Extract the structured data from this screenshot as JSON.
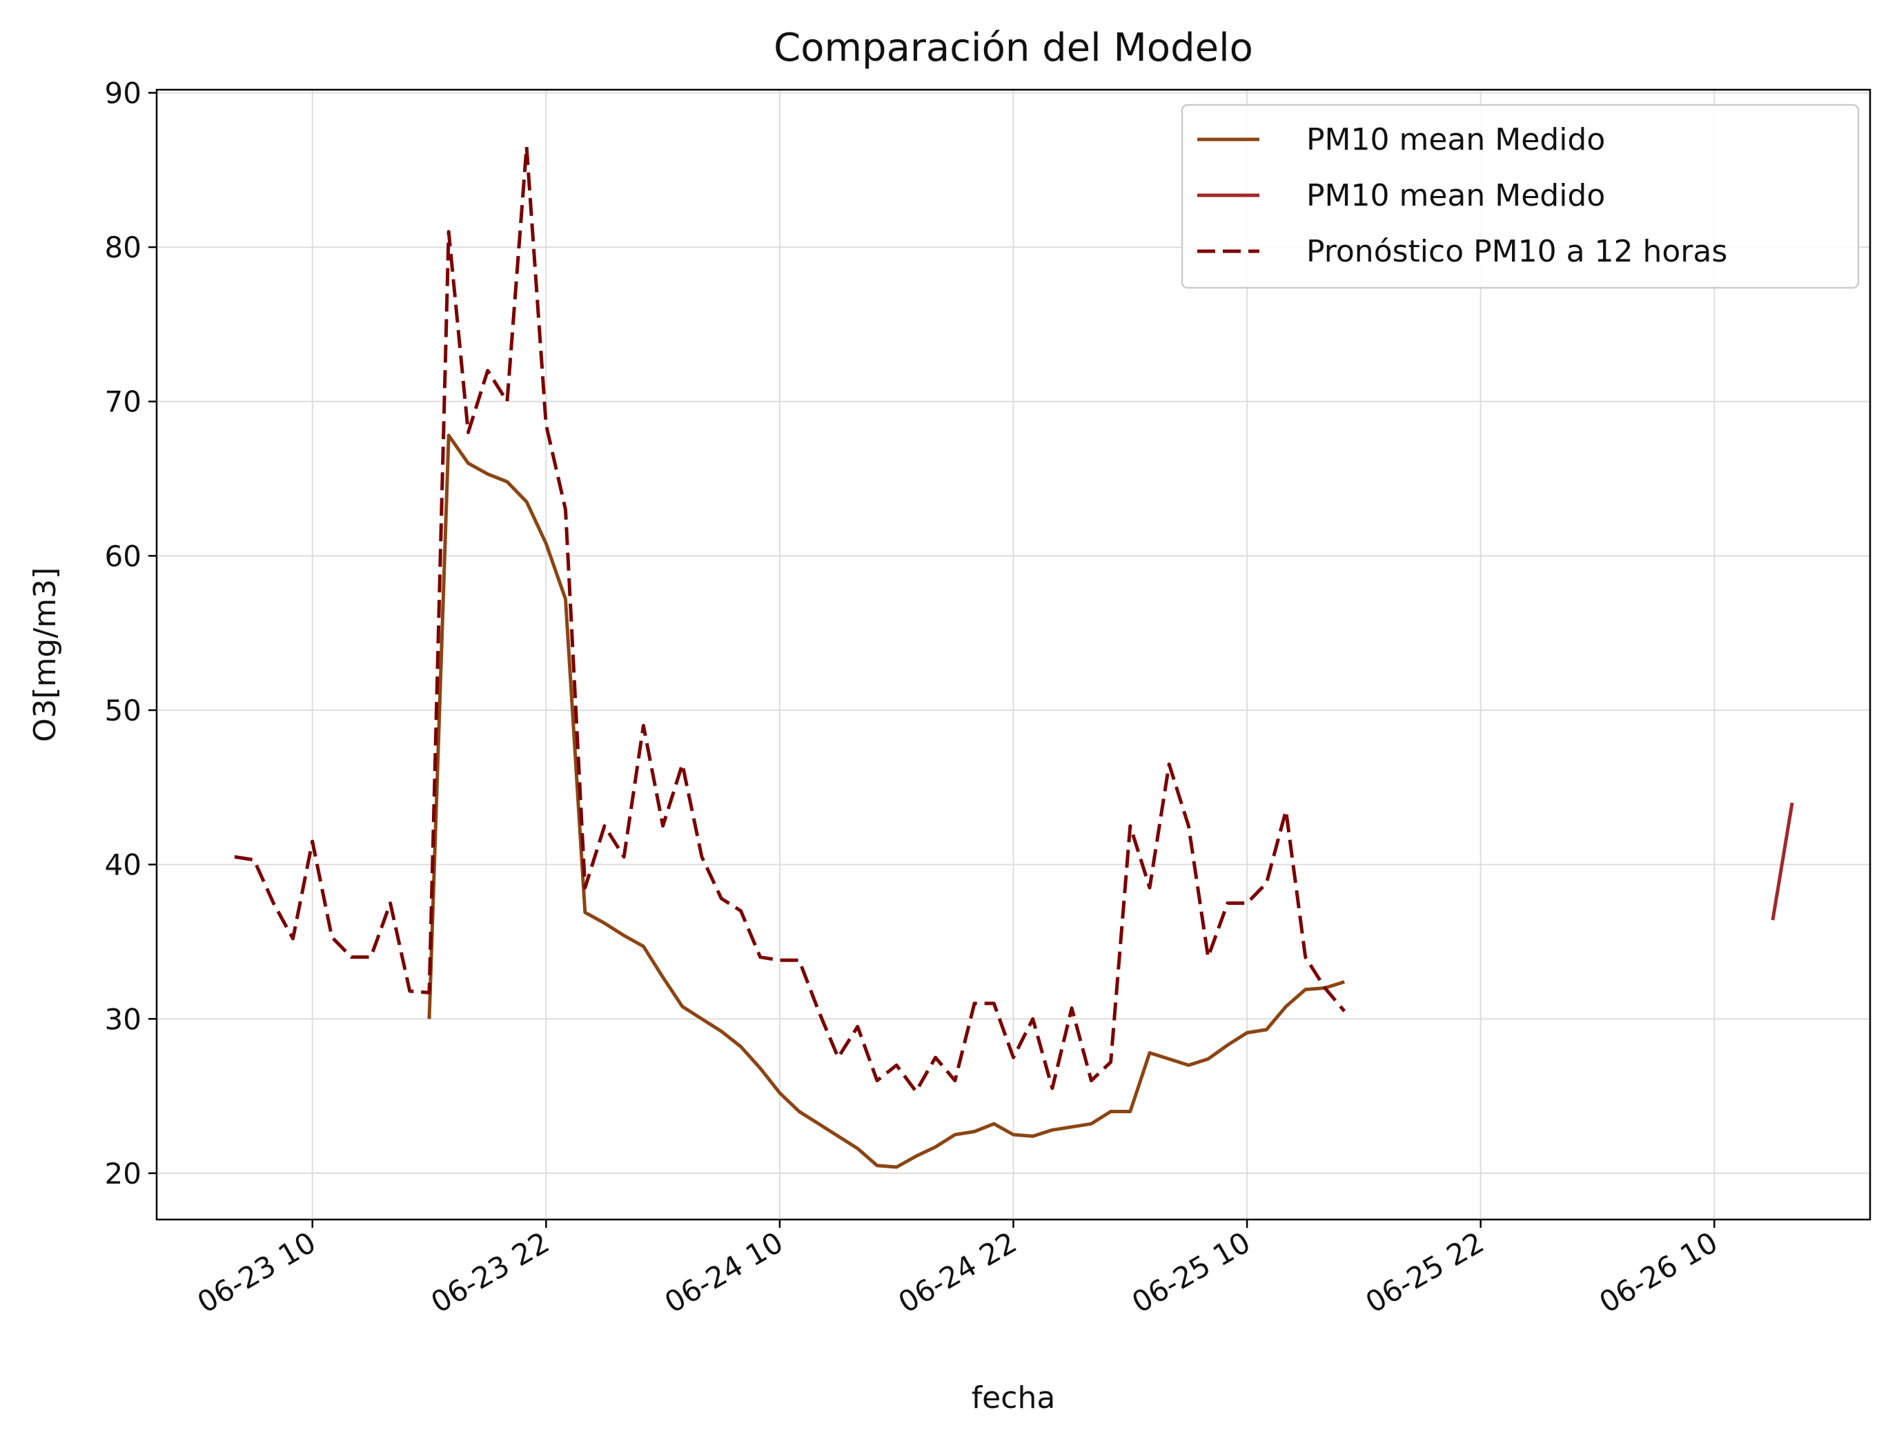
{
  "chart_data": {
    "type": "line",
    "title": "Comparación del Modelo",
    "xlabel": "fecha",
    "ylabel": "O3[mg/m3]",
    "x_unit": "hour",
    "x_ticks": [
      "06-23 10",
      "06-23 22",
      "06-24 10",
      "06-24 22",
      "06-25 10",
      "06-25 22",
      "06-26 10"
    ],
    "x_tick_dates": [
      "2023-06-23 10:00",
      "2023-06-23 22:00",
      "2023-06-24 10:00",
      "2023-06-24 22:00",
      "2023-06-25 10:00",
      "2023-06-25 22:00",
      "2023-06-26 10:00"
    ],
    "xlim": [
      "2023-06-23 02:00",
      "2023-06-26 18:00"
    ],
    "y_ticks": [
      20,
      30,
      40,
      50,
      60,
      70,
      80,
      90
    ],
    "ylim": [
      17,
      90.2
    ],
    "grid": true,
    "legend_position": "top-right",
    "series": [
      {
        "name": "PM10 mean Medido",
        "color": "#8B4513",
        "style": "solid",
        "x": [
          "2023-06-23 16:00",
          "2023-06-23 17:00",
          "2023-06-23 18:00",
          "2023-06-23 19:00",
          "2023-06-23 20:00",
          "2023-06-23 21:00",
          "2023-06-23 22:00",
          "2023-06-23 23:00",
          "2023-06-24 00:00",
          "2023-06-24 01:00",
          "2023-06-24 02:00",
          "2023-06-24 03:00",
          "2023-06-24 04:00",
          "2023-06-24 05:00",
          "2023-06-24 06:00",
          "2023-06-24 07:00",
          "2023-06-24 08:00",
          "2023-06-24 09:00",
          "2023-06-24 10:00",
          "2023-06-24 11:00",
          "2023-06-24 12:00",
          "2023-06-24 13:00",
          "2023-06-24 14:00",
          "2023-06-24 15:00",
          "2023-06-24 16:00",
          "2023-06-24 17:00",
          "2023-06-24 18:00",
          "2023-06-24 19:00",
          "2023-06-24 20:00",
          "2023-06-24 21:00",
          "2023-06-24 22:00",
          "2023-06-24 23:00",
          "2023-06-25 00:00",
          "2023-06-25 01:00",
          "2023-06-25 02:00",
          "2023-06-25 03:00",
          "2023-06-25 04:00",
          "2023-06-25 05:00",
          "2023-06-25 06:00",
          "2023-06-25 07:00",
          "2023-06-25 08:00",
          "2023-06-25 09:00",
          "2023-06-25 10:00",
          "2023-06-25 11:00",
          "2023-06-25 12:00",
          "2023-06-25 13:00",
          "2023-06-25 14:00",
          "2023-06-25 15:00"
        ],
        "values": [
          30.0,
          67.8,
          66.0,
          65.3,
          64.8,
          63.5,
          60.8,
          57.2,
          36.9,
          36.2,
          35.4,
          34.7,
          32.7,
          30.8,
          30.0,
          29.2,
          28.2,
          26.8,
          25.2,
          24.0,
          23.2,
          22.4,
          21.6,
          20.5,
          20.4,
          21.1,
          21.7,
          22.5,
          22.7,
          23.2,
          22.5,
          22.4,
          22.8,
          23.0,
          23.2,
          24.0,
          24.0,
          27.8,
          27.4,
          27.0,
          27.4,
          28.3,
          29.1,
          29.3,
          30.8,
          31.9,
          32.0,
          32.4
        ]
      },
      {
        "name": "PM10 mean Medido",
        "color": "#A0282A",
        "style": "solid",
        "x": [
          "2023-06-26 13:00",
          "2023-06-26 14:00"
        ],
        "values": [
          36.4,
          44.0
        ]
      },
      {
        "name": "Pronóstico PM10 a 12 horas",
        "color": "#7A0000",
        "style": "dashed",
        "x": [
          "2023-06-23 06:00",
          "2023-06-23 07:00",
          "2023-06-23 08:00",
          "2023-06-23 09:00",
          "2023-06-23 10:00",
          "2023-06-23 11:00",
          "2023-06-23 12:00",
          "2023-06-23 13:00",
          "2023-06-23 14:00",
          "2023-06-23 15:00",
          "2023-06-23 16:00",
          "2023-06-23 17:00",
          "2023-06-23 18:00",
          "2023-06-23 19:00",
          "2023-06-23 20:00",
          "2023-06-23 21:00",
          "2023-06-23 22:00",
          "2023-06-23 23:00",
          "2023-06-24 00:00",
          "2023-06-24 01:00",
          "2023-06-24 02:00",
          "2023-06-24 03:00",
          "2023-06-24 04:00",
          "2023-06-24 05:00",
          "2023-06-24 06:00",
          "2023-06-24 07:00",
          "2023-06-24 08:00",
          "2023-06-24 09:00",
          "2023-06-24 10:00",
          "2023-06-24 11:00",
          "2023-06-24 12:00",
          "2023-06-24 13:00",
          "2023-06-24 14:00",
          "2023-06-24 15:00",
          "2023-06-24 16:00",
          "2023-06-24 17:00",
          "2023-06-24 18:00",
          "2023-06-24 19:00",
          "2023-06-24 20:00",
          "2023-06-24 21:00",
          "2023-06-24 22:00",
          "2023-06-24 23:00",
          "2023-06-25 00:00",
          "2023-06-25 01:00",
          "2023-06-25 02:00",
          "2023-06-25 03:00",
          "2023-06-25 04:00",
          "2023-06-25 05:00",
          "2023-06-25 06:00",
          "2023-06-25 07:00",
          "2023-06-25 08:00",
          "2023-06-25 09:00",
          "2023-06-25 10:00",
          "2023-06-25 11:00",
          "2023-06-25 12:00",
          "2023-06-25 13:00",
          "2023-06-25 14:00",
          "2023-06-25 15:00"
        ],
        "values": [
          40.5,
          40.3,
          37.5,
          35.2,
          41.5,
          35.3,
          34.0,
          34.0,
          37.5,
          31.8,
          31.7,
          81.0,
          68.0,
          72.0,
          70.0,
          86.5,
          68.5,
          63.0,
          38.5,
          42.5,
          40.5,
          49.0,
          42.5,
          46.5,
          40.5,
          37.8,
          37.0,
          34.0,
          33.8,
          33.8,
          30.5,
          27.5,
          29.5,
          26.0,
          27.0,
          25.3,
          27.5,
          26.0,
          31.0,
          31.0,
          27.5,
          30.0,
          25.5,
          30.7,
          26.0,
          27.2,
          42.5,
          38.5,
          46.5,
          42.5,
          34.0,
          37.5,
          37.5,
          38.8,
          43.5,
          34.0,
          32.0,
          30.5
        ]
      }
    ]
  }
}
